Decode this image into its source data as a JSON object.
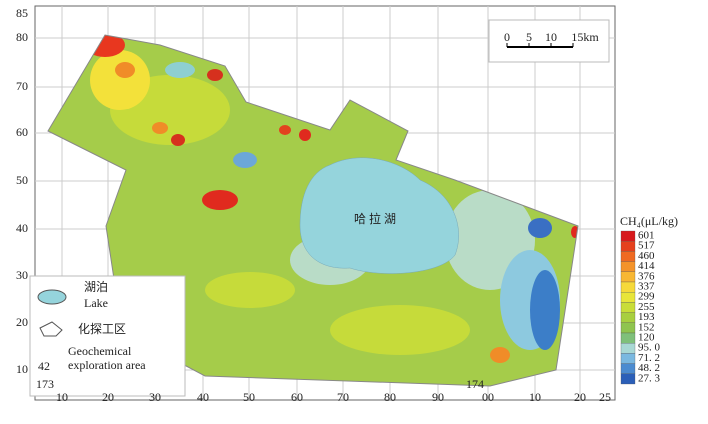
{
  "map": {
    "x_ticks": [
      "10",
      "20",
      "30",
      "40",
      "50",
      "60",
      "70",
      "80",
      "90",
      "00",
      "10",
      "20",
      "25"
    ],
    "y_ticks": [
      "85",
      "80",
      "70",
      "60",
      "50",
      "40",
      "30",
      "20",
      "10"
    ],
    "corner_labels": {
      "lat": "42",
      "lon_left": "173",
      "lon_right": "174"
    },
    "lake_name": "哈 拉 湖",
    "scale_bar": [
      "0",
      "5",
      "10",
      "15km"
    ],
    "legend": {
      "lake_cn": "湖泊",
      "lake_en": "Lake",
      "area_cn": "化探工区",
      "area_en_1": "Geochemical",
      "area_en_2": "exploration area"
    },
    "colorbar": {
      "title": "CH₄(μL/kg)",
      "levels": [
        "601",
        "517",
        "460",
        "414",
        "376",
        "337",
        "299",
        "255",
        "193",
        "152",
        "120",
        "95. 0",
        "71. 2",
        "48. 2",
        "27. 3"
      ]
    }
  }
}
